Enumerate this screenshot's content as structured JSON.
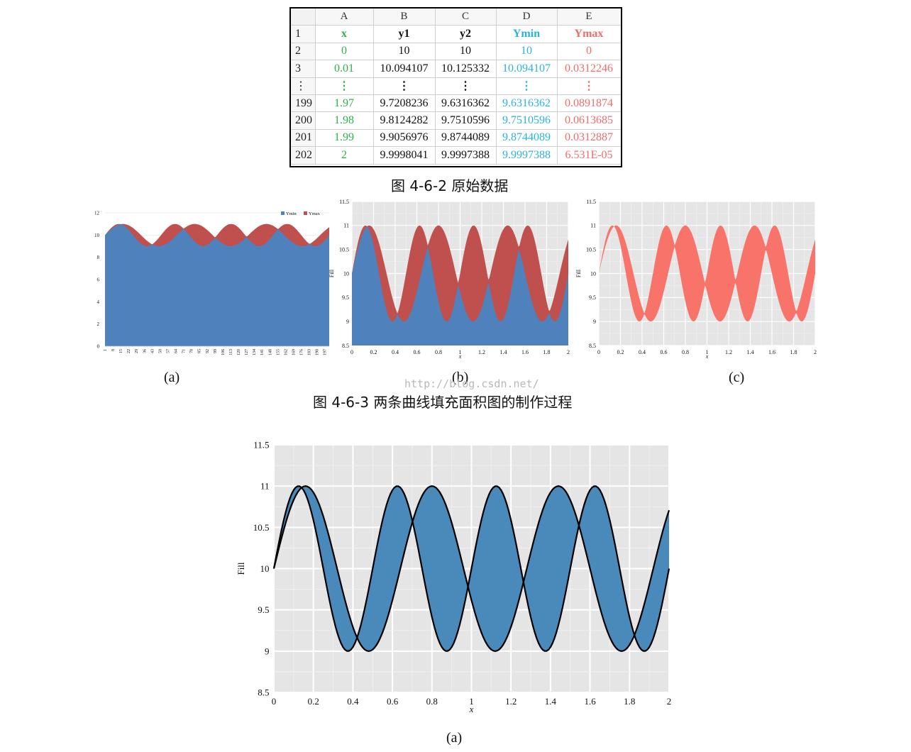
{
  "table": {
    "col_headers": [
      "A",
      "B",
      "C",
      "D",
      "E"
    ],
    "rows": [
      {
        "n": "1",
        "cells": [
          "x",
          "y1",
          "y2",
          "Ymin",
          "Ymax"
        ]
      },
      {
        "n": "2",
        "cells": [
          "0",
          "10",
          "10",
          "10",
          "0"
        ]
      },
      {
        "n": "3",
        "cells": [
          "0.01",
          "10.094107",
          "10.125332",
          "10.094107",
          "0.0312246"
        ]
      },
      {
        "n": "⋮",
        "cells": [
          "⋮",
          "⋮",
          "⋮",
          "⋮",
          "⋮"
        ]
      },
      {
        "n": "199",
        "cells": [
          "1.97",
          "9.7208236",
          "9.6316362",
          "9.6316362",
          "0.0891874"
        ]
      },
      {
        "n": "200",
        "cells": [
          "1.98",
          "9.8124282",
          "9.7510596",
          "9.7510596",
          "0.0613685"
        ]
      },
      {
        "n": "201",
        "cells": [
          "1.99",
          "9.9056976",
          "9.8744089",
          "9.8744089",
          "0.0312887"
        ]
      },
      {
        "n": "202",
        "cells": [
          "2",
          "9.9998041",
          "9.9997388",
          "9.9997388",
          "6.531E-05"
        ]
      }
    ],
    "column_colors": [
      "#2fb04b",
      "#111111",
      "#111111",
      "#2bb3e0",
      "#f26b6b"
    ]
  },
  "captions": {
    "fig2": "图 4-6-2  原始数据",
    "fig3": "图 4-6-3 两条曲线填充面积图的制作过程",
    "label_a": "(a)",
    "label_b": "(b)",
    "label_c": "(c)",
    "label_big": "(a)",
    "watermark": "http://blog.csdn.net/"
  },
  "colors": {
    "ymin": "#4f81bd",
    "ymax": "#c0504d",
    "fill_c": "#f8746a",
    "fill_big": "#4a8abb",
    "panel_bg": "#e5e5e5"
  },
  "chart_data": [
    {
      "id": "a",
      "type": "area",
      "title": "",
      "legend": [
        "Ymin",
        "Ymax"
      ],
      "legend_position": "top-right",
      "x_tick_labels": [
        "1",
        "8",
        "15",
        "22",
        "29",
        "36",
        "43",
        "50",
        "57",
        "64",
        "71",
        "78",
        "85",
        "92",
        "99",
        "106",
        "113",
        "120",
        "127",
        "134",
        "141",
        "148",
        "155",
        "162",
        "169",
        "176",
        "183",
        "190",
        "197"
      ],
      "ylim": [
        0,
        12
      ],
      "yticks": [
        "0",
        "2",
        "4",
        "6",
        "8",
        "10",
        "12"
      ],
      "series": [
        {
          "name": "Ymin",
          "values_from": "min(y1,y2)"
        },
        {
          "name": "Ymax",
          "values_from": "max(y1,y2)-min(y1,y2)"
        }
      ]
    },
    {
      "id": "b",
      "type": "area",
      "xlabel": "x",
      "ylabel": "Fill",
      "xlim": [
        0,
        2
      ],
      "ylim": [
        8.5,
        11.5
      ],
      "xticks": [
        "0",
        "0.2",
        "0.4",
        "0.6",
        "0.8",
        "1",
        "1.2",
        "1.4",
        "1.6",
        "1.8",
        "2"
      ],
      "yticks": [
        "8.5",
        "9",
        "9.5",
        "10",
        "10.5",
        "11",
        "11.5"
      ],
      "grid": true
    },
    {
      "id": "c",
      "type": "area",
      "xlabel": "x",
      "ylabel": "Fill",
      "xlim": [
        0,
        2
      ],
      "ylim": [
        8.5,
        11.5
      ],
      "xticks": [
        "0",
        "0.2",
        "0.4",
        "0.6",
        "0.8",
        "1",
        "1.2",
        "1.4",
        "1.6",
        "1.8",
        "2"
      ],
      "yticks": [
        "8.5",
        "9",
        "9.5",
        "10",
        "10.5",
        "11",
        "11.5"
      ],
      "grid": true
    },
    {
      "id": "big",
      "type": "area",
      "xlabel": "x",
      "ylabel": "Fill",
      "xlim": [
        0,
        2
      ],
      "ylim": [
        8.5,
        11.5
      ],
      "xticks": [
        "0",
        "0.2",
        "0.4",
        "0.6",
        "0.8",
        "1",
        "1.2",
        "1.4",
        "1.6",
        "1.8",
        "2"
      ],
      "yticks": [
        "8.5",
        "9",
        "9.5",
        "10",
        "10.5",
        "11",
        "11.5"
      ],
      "grid": true
    }
  ],
  "curves": {
    "x_start": 0,
    "x_end": 2,
    "step": 0.01,
    "y1_peak_x": [
      0.16,
      0.84,
      1.5
    ],
    "y2_peak_x": [
      0.12,
      0.63,
      1.13,
      1.63
    ]
  }
}
